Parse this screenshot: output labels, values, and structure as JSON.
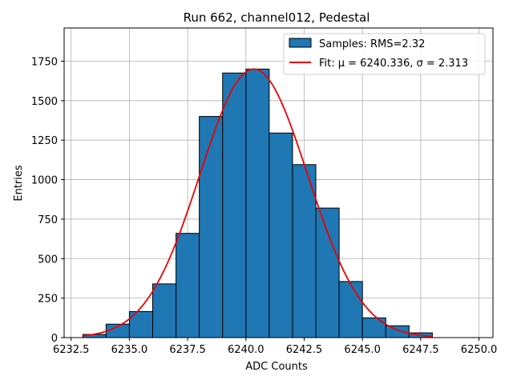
{
  "chart_data": {
    "type": "bar",
    "title": "Run 662, channel012, Pedestal",
    "xlabel": "ADC Counts",
    "ylabel": "Entries",
    "xlim": [
      6232.2,
      6250.6
    ],
    "ylim": [
      0,
      1960
    ],
    "grid": true,
    "legend_position": "top-right",
    "xticks": [
      6232.5,
      6235.0,
      6237.5,
      6240.0,
      6242.5,
      6245.0,
      6247.5,
      6250.0
    ],
    "xtick_labels": [
      "6232.5",
      "6235.0",
      "6237.5",
      "6240.0",
      "6242.5",
      "6245.0",
      "6247.5",
      "6250.0"
    ],
    "yticks": [
      0,
      250,
      500,
      750,
      1000,
      1250,
      1500,
      1750
    ],
    "ytick_labels": [
      "0",
      "250",
      "500",
      "750",
      "1000",
      "1250",
      "1500",
      "1750"
    ],
    "histogram": {
      "name": "Samples: RMS=2.32",
      "color": "#1f77b4",
      "edge_color": "#000000",
      "bins": [
        {
          "x0": 6233,
          "x1": 6234,
          "count": 20
        },
        {
          "x0": 6234,
          "x1": 6235,
          "count": 85
        },
        {
          "x0": 6235,
          "x1": 6236,
          "count": 165
        },
        {
          "x0": 6236,
          "x1": 6237,
          "count": 340
        },
        {
          "x0": 6237,
          "x1": 6238,
          "count": 660
        },
        {
          "x0": 6238,
          "x1": 6239,
          "count": 1400
        },
        {
          "x0": 6239,
          "x1": 6240,
          "count": 1675
        },
        {
          "x0": 6240,
          "x1": 6241,
          "count": 1700
        },
        {
          "x0": 6241,
          "x1": 6242,
          "count": 1295
        },
        {
          "x0": 6242,
          "x1": 6243,
          "count": 1095
        },
        {
          "x0": 6243,
          "x1": 6244,
          "count": 820
        },
        {
          "x0": 6244,
          "x1": 6245,
          "count": 355
        },
        {
          "x0": 6245,
          "x1": 6246,
          "count": 125
        },
        {
          "x0": 6246,
          "x1": 6247,
          "count": 75
        },
        {
          "x0": 6247,
          "x1": 6248,
          "count": 30
        }
      ]
    },
    "fit": {
      "name": "Fit: μ = 6240.336, σ = 2.313",
      "mu": 6240.336,
      "sigma": 2.313,
      "amplitude": 1700,
      "x_range": [
        6233,
        6248
      ],
      "color": "#ee0000"
    }
  }
}
